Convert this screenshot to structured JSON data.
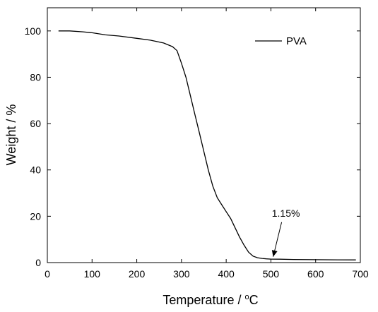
{
  "chart_data": {
    "type": "line",
    "xlabel": "Temperature / ",
    "xlabel_unit_sup": "o",
    "xlabel_unit": "C",
    "ylabel": "Weight / %",
    "xlim": [
      0,
      700
    ],
    "ylim": [
      0,
      110
    ],
    "xticks": [
      0,
      100,
      200,
      300,
      400,
      500,
      600,
      700
    ],
    "yticks": [
      0,
      20,
      40,
      60,
      80,
      100
    ],
    "grid": false,
    "legend_position": "top-right",
    "series": [
      {
        "name": "PVA",
        "color": "#000000",
        "x": [
          25,
          50,
          80,
          100,
          130,
          160,
          200,
          230,
          260,
          280,
          290,
          300,
          310,
          320,
          330,
          340,
          350,
          360,
          370,
          380,
          390,
          400,
          410,
          420,
          430,
          440,
          450,
          460,
          470,
          480,
          490,
          500,
          520,
          550,
          600,
          650,
          690
        ],
        "y": [
          100,
          100,
          99.6,
          99.2,
          98.3,
          97.8,
          96.8,
          96.0,
          94.8,
          93.2,
          91.5,
          86,
          80,
          72,
          64,
          56,
          48,
          40,
          33,
          28,
          25,
          22,
          19,
          15,
          11,
          7.5,
          4.5,
          2.8,
          2.1,
          1.8,
          1.6,
          1.5,
          1.45,
          1.35,
          1.25,
          1.2,
          1.15
        ]
      }
    ],
    "annotations": [
      {
        "text": "1.15%",
        "x": 505,
        "y": 2.5
      }
    ]
  }
}
